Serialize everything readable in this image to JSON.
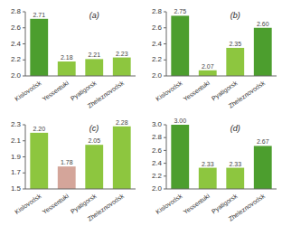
{
  "chart_data": [
    {
      "type": "bar",
      "title": "(a)",
      "categories": [
        "Kislovodsk",
        "Yessentuki",
        "Pyatigorsk",
        "Zheleznovodsk"
      ],
      "values": [
        2.712,
        2.18,
        2.21,
        2.23
      ],
      "value_labels": [
        "2.71",
        "2.18",
        "2.21",
        "2.23"
      ],
      "data_labels": true,
      "colors": [
        "#4c9e2e",
        "#8dc63f",
        "#8dc63f",
        "#8dc63f"
      ],
      "ylim": [
        2.0,
        2.8
      ],
      "yticks": [
        {
          "value": 2.0,
          "label": "2.0"
        },
        2.2,
        2.4,
        2.6,
        2.8
      ]
    },
    {
      "type": "bar",
      "title": "(b)",
      "categories": [
        "Kislovodsk",
        "Yessentuki",
        "Pyatigorsk",
        "Zheleznovodsk"
      ],
      "values": [
        2.75,
        2.07,
        2.35,
        2.6
      ],
      "value_labels": [
        "2.75",
        "2.07",
        "2.35",
        "2.60"
      ],
      "data_labels": true,
      "colors": [
        "#4c9e2e",
        "#8dc63f",
        "#8dc63f",
        "#4c9e2e"
      ],
      "ylim": [
        2.0,
        2.8
      ],
      "yticks": [
        {
          "value": 2.0,
          "label": "2.0"
        },
        2.2,
        2.4,
        2.6,
        2.8
      ]
    },
    {
      "type": "bar",
      "title": "(c)",
      "categories": [
        "Kislovodsk",
        "Yessentuki",
        "Pyatigorsk",
        "Zheleznovodsk"
      ],
      "values": [
        2.2,
        1.78,
        2.05,
        2.28
      ],
      "value_labels": [
        "2.20",
        "1.78",
        "2.05",
        "2.28"
      ],
      "data_labels": true,
      "colors": [
        "#8dc63f",
        "#d4a59a",
        "#8dc63f",
        "#8dc63f"
      ],
      "ylim": [
        1.5,
        2.3
      ],
      "yticks": [
        1.5,
        1.7,
        1.9,
        2.1,
        2.3
      ]
    },
    {
      "type": "bar",
      "title": "(d)",
      "categories": [
        "Kislovodsk",
        "Yessentuki",
        "Pyatigorsk",
        "Zheleznovodsk"
      ],
      "values": [
        3.0,
        2.33,
        2.33,
        2.67
      ],
      "value_labels": [
        "3.00",
        "2.33",
        "2.33",
        "2.67"
      ],
      "data_labels": true,
      "colors": [
        "#4c9e2e",
        "#8dc63f",
        "#8dc63f",
        "#4c9e2e"
      ],
      "ylim": [
        2.0,
        3.0
      ],
      "yticks": [
        {
          "value": 2.0,
          "label": "2.0"
        },
        2.2,
        2.4,
        2.6,
        2.8,
        {
          "value": 3.0,
          "label": "3.0"
        }
      ]
    }
  ]
}
